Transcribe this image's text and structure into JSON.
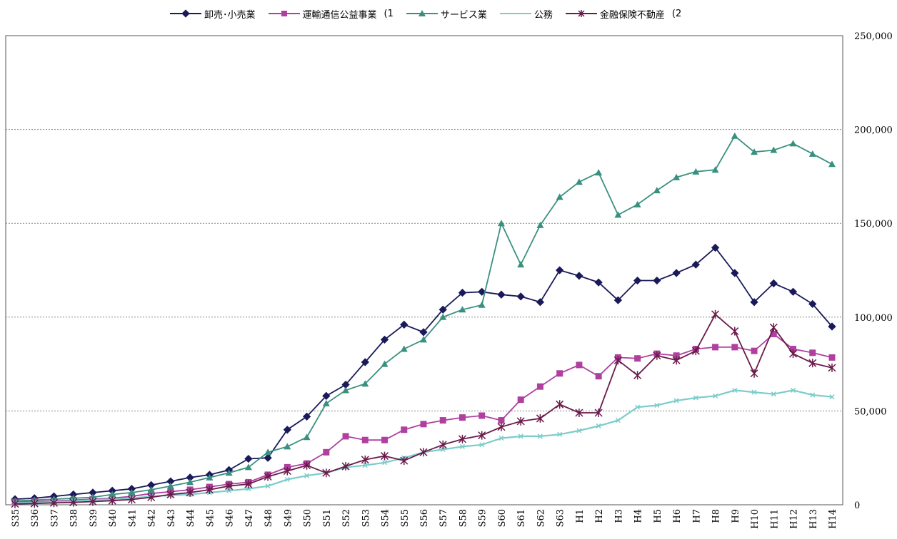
{
  "chart_data": {
    "type": "line",
    "categories": [
      "S35",
      "S36",
      "S37",
      "S38",
      "S39",
      "S40",
      "S41",
      "S42",
      "S43",
      "S44",
      "S45",
      "S46",
      "S47",
      "S48",
      "S49",
      "S50",
      "S51",
      "S52",
      "S53",
      "S54",
      "S55",
      "S56",
      "S57",
      "S58",
      "S59",
      "S60",
      "S61",
      "S62",
      "S63",
      "H1",
      "H2",
      "H3",
      "H4",
      "H5",
      "H6",
      "H7",
      "H8",
      "H9",
      "H10",
      "H11",
      "H12",
      "H13",
      "H14"
    ],
    "yticks": [
      "0",
      "50,000",
      "100,000",
      "150,000",
      "200,000",
      "250,000"
    ],
    "ylim": [
      0,
      250000
    ],
    "grid": true,
    "legend_position": "top",
    "series": [
      {
        "name": "卸売･小売業",
        "note": "",
        "color": "#1a1a5a",
        "marker": "diamond",
        "values": [
          3000,
          3500,
          4500,
          5500,
          6500,
          7500,
          8500,
          10500,
          12500,
          14500,
          16000,
          18500,
          24500,
          25000,
          40000,
          47000,
          58000,
          64000,
          76000,
          88000,
          96000,
          92000,
          104000,
          113000,
          113500,
          112000,
          111000,
          108000,
          125000,
          122000,
          118500,
          109000,
          119500,
          119500,
          123500,
          128000,
          137000,
          123500,
          108000,
          118000,
          113500,
          107000,
          95000
        ]
      },
      {
        "name": "運輸通信公益事業",
        "note": "(1",
        "color": "#b040a0",
        "marker": "square",
        "values": [
          1500,
          1800,
          2000,
          2500,
          3000,
          3500,
          4500,
          6000,
          7000,
          8000,
          9500,
          11000,
          12000,
          16000,
          20000,
          22000,
          28000,
          36500,
          34500,
          34500,
          40000,
          43000,
          45000,
          46500,
          47500,
          45000,
          56000,
          63000,
          70000,
          74500,
          68500,
          78500,
          78000,
          80500,
          79500,
          83000,
          84000,
          84000,
          82000,
          91000,
          83000,
          81000,
          78500
        ]
      },
      {
        "name": "サービス業",
        "note": "",
        "color": "#3a9080",
        "marker": "triangle",
        "values": [
          2000,
          2500,
          3000,
          3500,
          4000,
          5500,
          6500,
          8000,
          10000,
          12000,
          14500,
          17000,
          20000,
          28000,
          31000,
          36000,
          54000,
          61000,
          64500,
          75000,
          83000,
          88000,
          100000,
          104000,
          106500,
          150000,
          128000,
          149000,
          164000,
          172000,
          177000,
          154500,
          160000,
          167500,
          174500,
          177500,
          178500,
          196500,
          188000,
          189000,
          192500,
          187000,
          181500
        ]
      },
      {
        "name": "公務",
        "note": "",
        "color": "#7ccccc",
        "marker": "x",
        "values": [
          1000,
          1200,
          1500,
          2000,
          2500,
          3000,
          3500,
          4500,
          5000,
          5500,
          6500,
          7500,
          8500,
          10000,
          13500,
          15500,
          17000,
          20000,
          21000,
          22500,
          25000,
          28000,
          29500,
          31000,
          32000,
          35500,
          36500,
          36500,
          37500,
          39500,
          42000,
          45000,
          52000,
          53000,
          55500,
          57000,
          58000,
          61000,
          60000,
          59000,
          61000,
          58500,
          57500
        ]
      },
      {
        "name": "金融保険不動産",
        "note": "(2",
        "color": "#6a1a4a",
        "marker": "star",
        "values": [
          500,
          700,
          1000,
          1300,
          1700,
          2200,
          2800,
          4000,
          5500,
          6500,
          8000,
          10000,
          11000,
          15000,
          18000,
          21000,
          17000,
          20500,
          24000,
          26000,
          23500,
          28000,
          32000,
          35000,
          37000,
          41500,
          44500,
          46000,
          53500,
          49000,
          49000,
          77000,
          69000,
          79500,
          77000,
          82000,
          101500,
          92500,
          70000,
          94500,
          80500,
          75500,
          73000
        ]
      }
    ]
  }
}
